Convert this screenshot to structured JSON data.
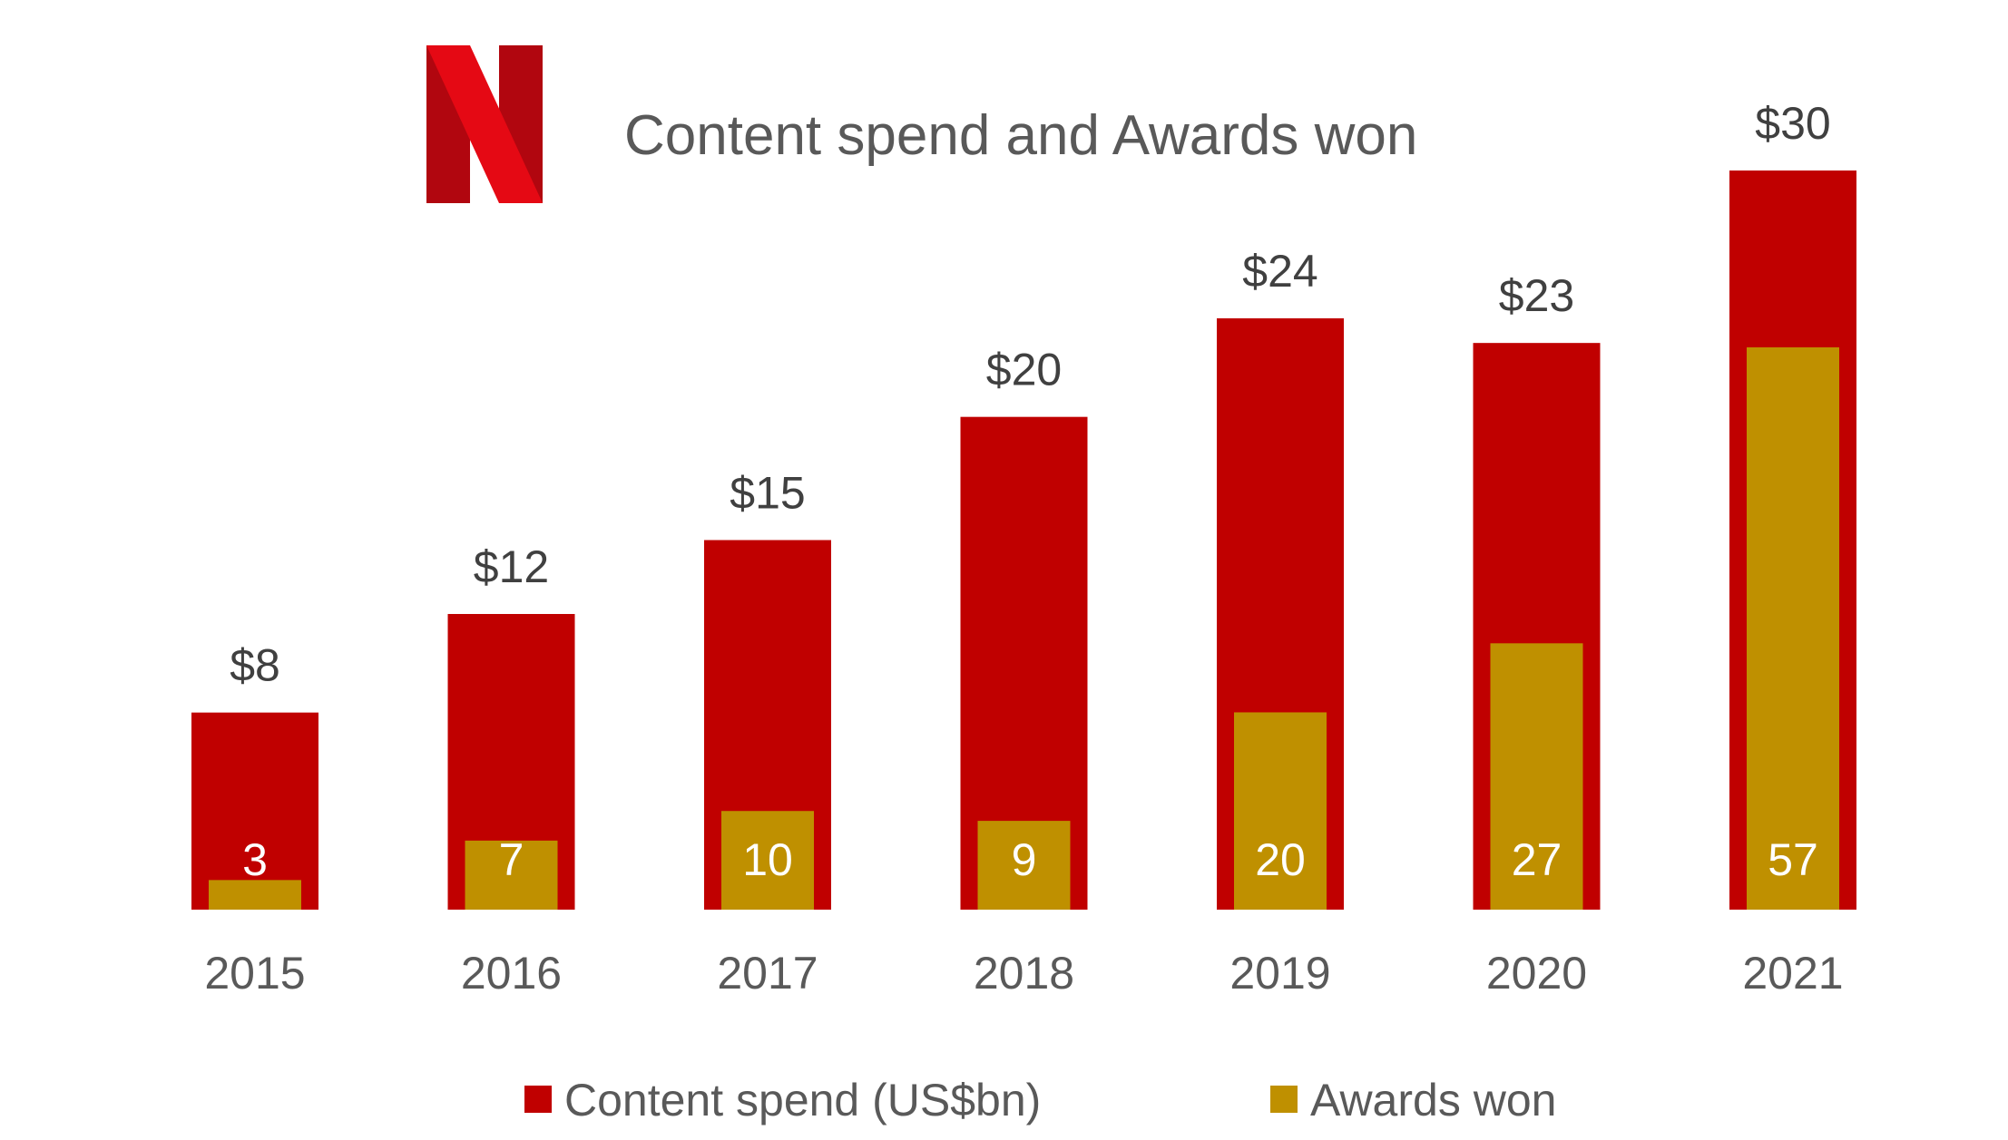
{
  "chart_data": {
    "type": "bar",
    "title": "Content spend and Awards won",
    "categories": [
      "2015",
      "2016",
      "2017",
      "2018",
      "2019",
      "2020",
      "2021"
    ],
    "series": [
      {
        "name": "Content spend (US$bn)",
        "values": [
          8,
          12,
          15,
          20,
          24,
          23,
          30
        ],
        "labels": [
          "$8",
          "$12",
          "$15",
          "$20",
          "$24",
          "$23",
          "$30"
        ],
        "color": "#C00000"
      },
      {
        "name": "Awards won",
        "values": [
          3,
          7,
          10,
          9,
          20,
          27,
          57
        ],
        "labels": [
          "3",
          "7",
          "10",
          "9",
          "20",
          "27",
          "57"
        ],
        "color": "#BF9000"
      }
    ],
    "spend_range": [
      0,
      30
    ],
    "awards_range": [
      0,
      75
    ],
    "xlabel": "",
    "ylabel": "",
    "grid": false,
    "legend": "bottom"
  },
  "logo": {
    "name": "netflix-logo",
    "colors": [
      "#E50914",
      "#B1060F"
    ]
  }
}
